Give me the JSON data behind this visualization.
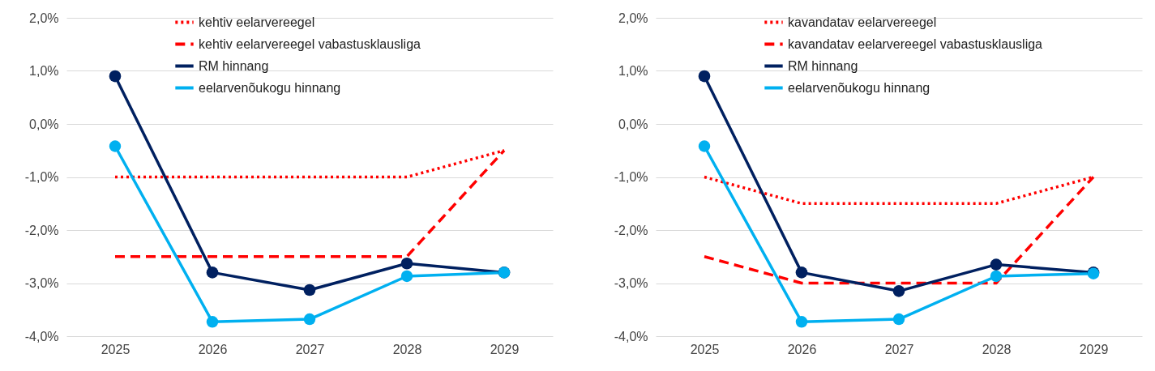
{
  "chart_data": [
    {
      "type": "line",
      "categories": [
        "2025",
        "2026",
        "2027",
        "2028",
        "2029"
      ],
      "ylim": [
        -4,
        2
      ],
      "yticks": [
        {
          "value": 2,
          "label": "2,0%"
        },
        {
          "value": 1,
          "label": "1,0%"
        },
        {
          "value": 0,
          "label": "0,0%"
        },
        {
          "value": -1,
          "label": "-1,0%"
        },
        {
          "value": -2,
          "label": "-2,0%"
        },
        {
          "value": -3,
          "label": "-3,0%"
        },
        {
          "value": -4,
          "label": "-4,0%"
        }
      ],
      "grid": "y",
      "legend": "top",
      "series": [
        {
          "name": "kehtiv eelarvereegel",
          "color": "#ff0000",
          "line_style": "dotted",
          "marker": "none",
          "values": [
            -1,
            -1,
            -1,
            -1,
            -0.5
          ]
        },
        {
          "name": "kehtiv eelarvereegel vabastusklausliga",
          "color": "#ff0000",
          "line_style": "dashed",
          "marker": "none",
          "values": [
            -2.5,
            -2.5,
            -2.5,
            -2.5,
            -0.5
          ]
        },
        {
          "name": "RM hinnang",
          "color": "#002060",
          "line_style": "solid",
          "marker": "circle",
          "values": [
            0.9,
            -2.8,
            -3.13,
            -2.63,
            -2.8
          ]
        },
        {
          "name": "eelarvenõukogu hinnang",
          "color": "#00b0f0",
          "line_style": "solid",
          "marker": "circle",
          "values": [
            -0.42,
            -3.73,
            -3.68,
            -2.87,
            -2.8
          ]
        }
      ]
    },
    {
      "type": "line",
      "categories": [
        "2025",
        "2026",
        "2027",
        "2028",
        "2029"
      ],
      "ylim": [
        -4,
        2
      ],
      "yticks": [
        {
          "value": 2,
          "label": "2,0%"
        },
        {
          "value": 1,
          "label": "1,0%"
        },
        {
          "value": 0,
          "label": "0,0%"
        },
        {
          "value": -1,
          "label": "-1,0%"
        },
        {
          "value": -2,
          "label": "-2,0%"
        },
        {
          "value": -3,
          "label": "-3,0%"
        },
        {
          "value": -4,
          "label": "-4,0%"
        }
      ],
      "grid": "y",
      "legend": "top",
      "series": [
        {
          "name": "kavandatav eelarvereegel",
          "color": "#ff0000",
          "line_style": "dotted",
          "marker": "none",
          "values": [
            -1,
            -1.5,
            -1.5,
            -1.5,
            -1
          ]
        },
        {
          "name": "kavandatav eelarvereegel vabastusklausliga",
          "color": "#ff0000",
          "line_style": "dashed",
          "marker": "none",
          "values": [
            -2.5,
            -3,
            -3,
            -3,
            -1
          ]
        },
        {
          "name": "RM hinnang",
          "color": "#002060",
          "line_style": "solid",
          "marker": "circle",
          "values": [
            0.9,
            -2.8,
            -3.15,
            -2.65,
            -2.8
          ]
        },
        {
          "name": "eelarvenõukogu hinnang",
          "color": "#00b0f0",
          "line_style": "solid",
          "marker": "circle",
          "values": [
            -0.42,
            -3.73,
            -3.68,
            -2.87,
            -2.82
          ]
        }
      ]
    }
  ]
}
